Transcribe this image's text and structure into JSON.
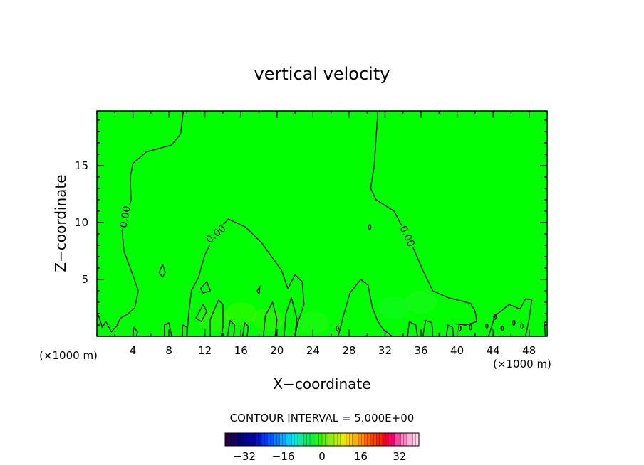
{
  "chart_data": {
    "type": "heatmap",
    "title": "vertical velocity",
    "xlabel": "X−coordinate",
    "ylabel": "Z−coordinate",
    "x_unit_label_left": "(×1000 m)",
    "x_unit_label_right": "(×1000 m)",
    "xlim": [
      0,
      50
    ],
    "ylim": [
      0,
      19.8
    ],
    "x_ticks": [
      4,
      8,
      12,
      16,
      20,
      24,
      28,
      32,
      36,
      40,
      44,
      48
    ],
    "y_ticks": [
      5,
      10,
      15
    ],
    "grid": false,
    "field_color_dominant": "#00ff00",
    "contour_label": "0.00",
    "contour_interval_text": "CONTOUR INTERVAL = 5.000E+00",
    "colorbar": {
      "range": [
        -40,
        40
      ],
      "ticks": [
        -32,
        -16,
        0,
        16,
        32
      ],
      "tick_labels": [
        "−32",
        "−16",
        "0",
        "16",
        "32"
      ],
      "colors": [
        "#2a004a",
        "#14005e",
        "#000070",
        "#00008e",
        "#0000b0",
        "#0014d0",
        "#0034f0",
        "#0058ff",
        "#0080ff",
        "#00a8ff",
        "#00ccff",
        "#00e8e0",
        "#00f0a0",
        "#00f060",
        "#10f030",
        "#30f010",
        "#60f000",
        "#90f000",
        "#c0f000",
        "#e8e800",
        "#ffd000",
        "#ffb000",
        "#ff8c00",
        "#ff6600",
        "#ff4000",
        "#ff2000",
        "#f00030",
        "#f00070",
        "#ff40a0",
        "#ff80c0",
        "#ffb0d8",
        "#ffd0e8"
      ]
    },
    "contours_zero": [
      [
        [
          9.6,
          19.8
        ],
        [
          9.3,
          17.8
        ],
        [
          8.3,
          16.8
        ],
        [
          5.5,
          16.2
        ],
        [
          4.0,
          15.2
        ],
        [
          3.7,
          14.0
        ],
        [
          3.8,
          12.0
        ],
        [
          3.3,
          10.5
        ],
        [
          2.8,
          9.3
        ],
        [
          3.0,
          7.5
        ],
        [
          3.8,
          5.8
        ],
        [
          4.6,
          4.0
        ],
        [
          4.2,
          2.5
        ],
        [
          3.3,
          1.9
        ],
        [
          2.6,
          1.6
        ],
        [
          2.2,
          0.9
        ],
        [
          1.6,
          0.4
        ],
        [
          1.0,
          1.3
        ],
        [
          0.6,
          0.8
        ],
        [
          0.2,
          1.8
        ],
        [
          0,
          2.0
        ]
      ],
      [
        [
          31.2,
          19.8
        ],
        [
          30.8,
          15.0
        ],
        [
          30.4,
          13.0
        ],
        [
          31.0,
          12.0
        ],
        [
          33.0,
          11.0
        ],
        [
          34.0,
          9.5
        ],
        [
          35.0,
          8.0
        ],
        [
          36.2,
          5.8
        ],
        [
          37.3,
          4.0
        ],
        [
          39.0,
          3.4
        ],
        [
          41.5,
          2.9
        ],
        [
          42.0,
          2.2
        ],
        [
          42.2,
          1.3
        ],
        [
          41.0,
          1.0
        ],
        [
          39.8,
          1.1
        ]
      ],
      [
        [
          10.0,
          0
        ],
        [
          10.2,
          2.0
        ],
        [
          10.5,
          4.0
        ],
        [
          11.3,
          5.2
        ],
        [
          12.0,
          7.2
        ],
        [
          12.8,
          8.4
        ],
        [
          14.0,
          9.8
        ],
        [
          14.6,
          10.3
        ],
        [
          16.5,
          9.6
        ],
        [
          18.3,
          8.2
        ],
        [
          20.5,
          5.8
        ],
        [
          21.2,
          4.2
        ],
        [
          22.0,
          5.4
        ],
        [
          22.8,
          4.8
        ],
        [
          23.0,
          2.8
        ],
        [
          22.3,
          1.2
        ],
        [
          22.0,
          0
        ]
      ],
      [
        [
          26.8,
          0
        ],
        [
          27.3,
          1.6
        ],
        [
          28.1,
          3.8
        ],
        [
          29.3,
          5.0
        ],
        [
          30.1,
          4.5
        ],
        [
          30.6,
          2.5
        ],
        [
          31.2,
          1.3
        ],
        [
          31.8,
          0.6
        ],
        [
          32.8,
          0
        ]
      ],
      [
        [
          7.3,
          6.3
        ],
        [
          7.6,
          5.6
        ],
        [
          7.3,
          5.2
        ],
        [
          6.9,
          5.6
        ],
        [
          7.3,
          6.3
        ]
      ],
      [
        [
          17.8,
          4.0
        ],
        [
          18.1,
          4.4
        ],
        [
          18.0,
          3.7
        ],
        [
          17.8,
          4.0
        ]
      ],
      [
        [
          11.5,
          4.2
        ],
        [
          12.2,
          4.8
        ],
        [
          12.6,
          4.0
        ],
        [
          11.8,
          3.8
        ],
        [
          11.5,
          4.2
        ]
      ],
      [
        [
          11.0,
          1.6
        ],
        [
          11.8,
          2.8
        ],
        [
          12.2,
          2.2
        ],
        [
          11.6,
          1.3
        ],
        [
          11.0,
          1.6
        ]
      ],
      [
        [
          12.6,
          0
        ],
        [
          12.6,
          1.5
        ],
        [
          13.5,
          3.2
        ],
        [
          14.0,
          2.8
        ],
        [
          14.0,
          0.8
        ],
        [
          13.8,
          0
        ]
      ],
      [
        [
          18.5,
          0
        ],
        [
          18.7,
          1.8
        ],
        [
          19.5,
          3.0
        ],
        [
          20.0,
          1.5
        ],
        [
          19.8,
          0
        ]
      ],
      [
        [
          20.8,
          0
        ],
        [
          21.0,
          2.0
        ],
        [
          21.6,
          3.4
        ],
        [
          22.2,
          1.6
        ],
        [
          22.0,
          0
        ]
      ],
      [
        [
          43.5,
          0
        ],
        [
          44.2,
          1.8
        ],
        [
          45.8,
          2.8
        ],
        [
          47.0,
          2.4
        ],
        [
          47.6,
          3.3
        ],
        [
          48.3,
          3.2
        ],
        [
          48.0,
          1.5
        ],
        [
          47.6,
          0
        ]
      ],
      [
        [
          7.5,
          0
        ],
        [
          7.5,
          1.0
        ],
        [
          8.0,
          1.2
        ],
        [
          8.3,
          0
        ]
      ],
      [
        [
          9.5,
          0
        ],
        [
          9.5,
          1.0
        ],
        [
          10.0,
          0.8
        ],
        [
          10.0,
          0
        ]
      ],
      [
        [
          4.0,
          0
        ],
        [
          4.1,
          0.8
        ],
        [
          4.5,
          0.4
        ],
        [
          4.4,
          0
        ]
      ],
      [
        [
          34.5,
          0
        ],
        [
          34.7,
          1.3
        ],
        [
          35.4,
          1.0
        ],
        [
          35.6,
          0
        ]
      ],
      [
        [
          36.2,
          0
        ],
        [
          36.5,
          1.4
        ],
        [
          37.2,
          1.2
        ],
        [
          37.3,
          0
        ]
      ],
      [
        [
          38.8,
          0
        ],
        [
          39.0,
          1.0
        ],
        [
          39.5,
          0.8
        ],
        [
          39.6,
          0
        ]
      ],
      [
        [
          14.5,
          0
        ],
        [
          14.8,
          1.4
        ],
        [
          15.3,
          1.0
        ],
        [
          15.2,
          0
        ]
      ],
      [
        [
          16.2,
          0
        ],
        [
          16.4,
          1.2
        ],
        [
          16.8,
          0.9
        ],
        [
          16.7,
          0
        ]
      ],
      [
        [
          49.8,
          0
        ],
        [
          49.7,
          1.2
        ],
        [
          50,
          1.4
        ]
      ]
    ],
    "small_closed_contours": [
      [
        26.7,
        0.7
      ],
      [
        40.3,
        0.7
      ],
      [
        41.5,
        0.8
      ],
      [
        43.3,
        0.9
      ],
      [
        44.2,
        1.7
      ],
      [
        45.0,
        0.7
      ],
      [
        46.3,
        1.2
      ],
      [
        47.2,
        0.9
      ],
      [
        30.3,
        9.6
      ]
    ],
    "contour_label_positions": [
      [
        3.1,
        10.5,
        -80
      ],
      [
        13.2,
        9.0,
        -40
      ],
      [
        34.5,
        8.8,
        65
      ]
    ]
  }
}
